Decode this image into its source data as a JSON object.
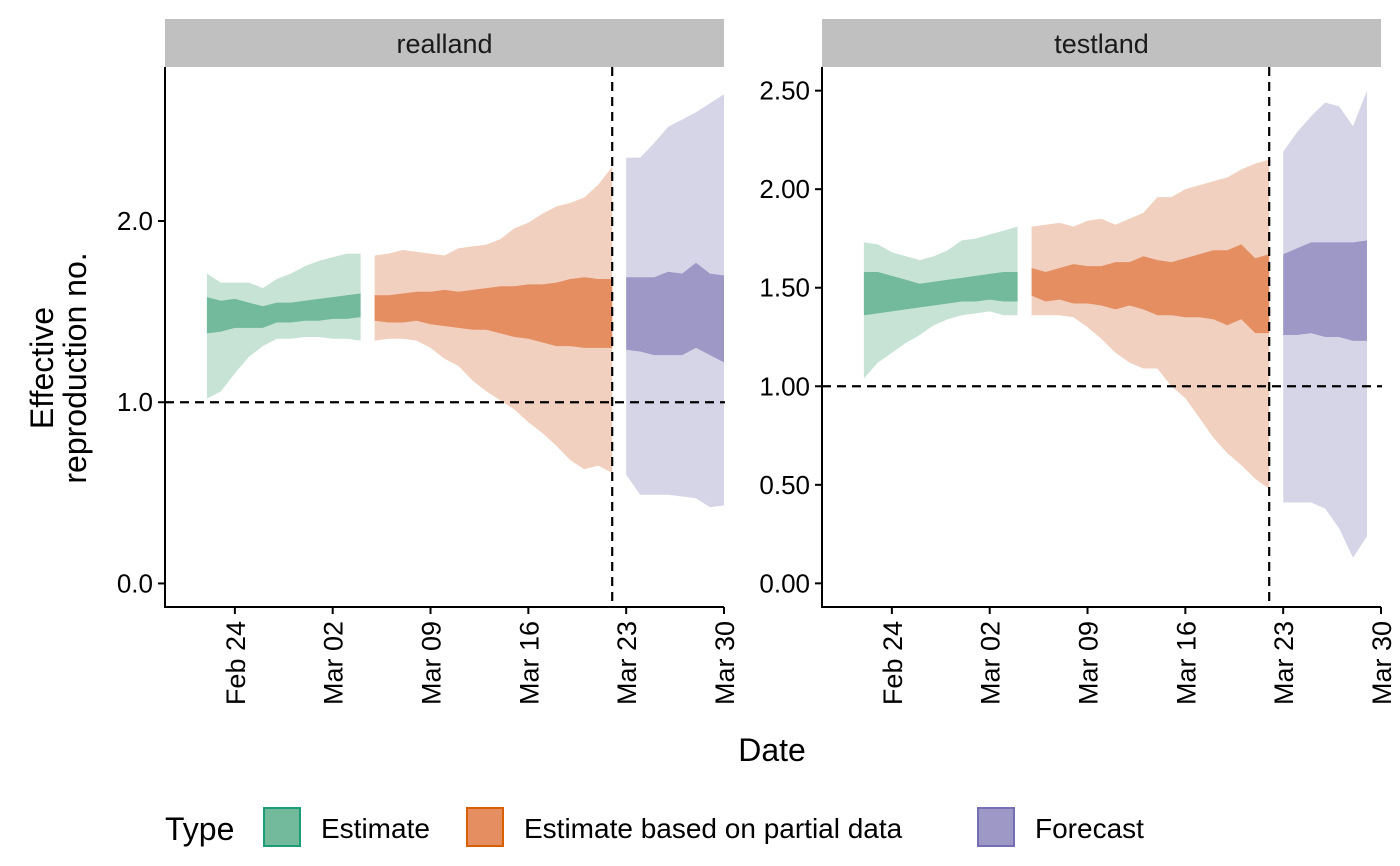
{
  "chart_data": {
    "type": "area",
    "ylabel_lines": [
      "Effective",
      "reproduction no."
    ],
    "xlabel": "Date",
    "legend": {
      "title": "Type",
      "position": "bottom",
      "entries": [
        {
          "label": "Estimate",
          "fill": "#73B99C",
          "stroke": "#1B9E77"
        },
        {
          "label": "Estimate based on partial data",
          "fill": "#E48E62",
          "stroke": "#D95F02"
        },
        {
          "label": "Forecast",
          "fill": "#9D98C6",
          "stroke": "#7570B3"
        }
      ]
    },
    "colors": {
      "Estimate": {
        "inner": "#73B99C",
        "outer": "#C7E3D6"
      },
      "Estimate based on partial data": {
        "inner": "#E48E62",
        "outer": "#F2D0BF"
      },
      "Forecast": {
        "inner": "#9D98C6",
        "outer": "#D6D5E8"
      }
    },
    "reference_line_y": 1.0,
    "reference_line_x": "2020-03-22",
    "x_ticks": [
      "Feb 24",
      "Mar 02",
      "Mar 09",
      "Mar 16",
      "Mar 23",
      "Mar 30"
    ],
    "x_tick_dates": [
      "2020-02-24",
      "2020-03-02",
      "2020-03-09",
      "2020-03-16",
      "2020-03-23",
      "2020-03-30"
    ],
    "xlim": [
      "2020-02-19",
      "2020-03-30"
    ],
    "facets": [
      {
        "name": "realland",
        "ylim": [
          -0.13,
          2.85
        ],
        "y_ticks": [
          0.0,
          1.0,
          2.0
        ],
        "y_tick_labels": [
          "0.0",
          "1.0",
          "2.0"
        ],
        "bands": [
          {
            "type": "Estimate",
            "x": [
              "2020-02-22",
              "2020-02-23",
              "2020-02-24",
              "2020-02-25",
              "2020-02-26",
              "2020-02-27",
              "2020-02-28",
              "2020-02-29",
              "2020-03-01",
              "2020-03-02",
              "2020-03-03",
              "2020-03-04"
            ],
            "lower90": [
              1.02,
              1.06,
              1.16,
              1.25,
              1.31,
              1.35,
              1.35,
              1.36,
              1.36,
              1.35,
              1.35,
              1.34
            ],
            "upper90": [
              1.71,
              1.66,
              1.66,
              1.66,
              1.63,
              1.68,
              1.71,
              1.75,
              1.78,
              1.8,
              1.82,
              1.82
            ],
            "lower50": [
              1.38,
              1.39,
              1.41,
              1.41,
              1.41,
              1.44,
              1.44,
              1.45,
              1.45,
              1.46,
              1.46,
              1.47
            ],
            "upper50": [
              1.58,
              1.56,
              1.57,
              1.55,
              1.53,
              1.55,
              1.55,
              1.56,
              1.57,
              1.58,
              1.59,
              1.6
            ]
          },
          {
            "type": "Estimate based on partial data",
            "x": [
              "2020-03-05",
              "2020-03-06",
              "2020-03-07",
              "2020-03-08",
              "2020-03-09",
              "2020-03-10",
              "2020-03-11",
              "2020-03-12",
              "2020-03-13",
              "2020-03-14",
              "2020-03-15",
              "2020-03-16",
              "2020-03-17",
              "2020-03-18",
              "2020-03-19",
              "2020-03-20",
              "2020-03-21",
              "2020-03-22"
            ],
            "lower90": [
              1.34,
              1.35,
              1.35,
              1.34,
              1.3,
              1.24,
              1.2,
              1.12,
              1.06,
              1.01,
              0.96,
              0.89,
              0.83,
              0.76,
              0.68,
              0.63,
              0.65,
              0.61
            ],
            "upper90": [
              1.81,
              1.82,
              1.84,
              1.83,
              1.82,
              1.81,
              1.85,
              1.86,
              1.87,
              1.9,
              1.96,
              1.99,
              2.04,
              2.08,
              2.1,
              2.13,
              2.2,
              2.3
            ],
            "lower50": [
              1.45,
              1.44,
              1.44,
              1.45,
              1.43,
              1.42,
              1.41,
              1.4,
              1.4,
              1.38,
              1.36,
              1.35,
              1.33,
              1.31,
              1.31,
              1.3,
              1.3,
              1.3
            ],
            "upper50": [
              1.59,
              1.59,
              1.6,
              1.61,
              1.61,
              1.62,
              1.61,
              1.62,
              1.63,
              1.64,
              1.64,
              1.65,
              1.65,
              1.66,
              1.68,
              1.69,
              1.68,
              1.68
            ]
          },
          {
            "type": "Forecast",
            "x": [
              "2020-03-23",
              "2020-03-24",
              "2020-03-25",
              "2020-03-26",
              "2020-03-27",
              "2020-03-28",
              "2020-03-29",
              "2020-03-30"
            ],
            "lower90": [
              0.6,
              0.49,
              0.49,
              0.49,
              0.48,
              0.47,
              0.42,
              0.43
            ],
            "upper90": [
              2.35,
              2.35,
              2.43,
              2.52,
              2.56,
              2.6,
              2.65,
              2.7
            ],
            "lower50": [
              1.29,
              1.28,
              1.26,
              1.26,
              1.26,
              1.3,
              1.26,
              1.22
            ],
            "upper50": [
              1.69,
              1.69,
              1.69,
              1.72,
              1.71,
              1.77,
              1.71,
              1.7
            ]
          }
        ]
      },
      {
        "name": "testland",
        "ylim": [
          -0.12,
          2.62
        ],
        "y_ticks": [
          0.0,
          0.5,
          1.0,
          1.5,
          2.0,
          2.5
        ],
        "y_tick_labels": [
          "0.00",
          "0.50",
          "1.00",
          "1.50",
          "2.00",
          "2.50"
        ],
        "bands": [
          {
            "type": "Estimate",
            "x": [
              "2020-02-22",
              "2020-02-23",
              "2020-02-24",
              "2020-02-25",
              "2020-02-26",
              "2020-02-27",
              "2020-02-28",
              "2020-02-29",
              "2020-03-01",
              "2020-03-02",
              "2020-03-03",
              "2020-03-04"
            ],
            "lower90": [
              1.04,
              1.12,
              1.17,
              1.22,
              1.26,
              1.31,
              1.34,
              1.36,
              1.37,
              1.38,
              1.36,
              1.36
            ],
            "upper90": [
              1.73,
              1.72,
              1.68,
              1.66,
              1.64,
              1.66,
              1.69,
              1.74,
              1.75,
              1.77,
              1.79,
              1.81
            ],
            "lower50": [
              1.36,
              1.37,
              1.38,
              1.39,
              1.4,
              1.41,
              1.42,
              1.43,
              1.43,
              1.44,
              1.43,
              1.43
            ],
            "upper50": [
              1.58,
              1.58,
              1.56,
              1.54,
              1.52,
              1.53,
              1.54,
              1.55,
              1.56,
              1.57,
              1.58,
              1.58
            ]
          },
          {
            "type": "Estimate based on partial data",
            "x": [
              "2020-03-05",
              "2020-03-06",
              "2020-03-07",
              "2020-03-08",
              "2020-03-09",
              "2020-03-10",
              "2020-03-11",
              "2020-03-12",
              "2020-03-13",
              "2020-03-14",
              "2020-03-15",
              "2020-03-16",
              "2020-03-17",
              "2020-03-18",
              "2020-03-19",
              "2020-03-20",
              "2020-03-21",
              "2020-03-22"
            ],
            "lower90": [
              1.36,
              1.36,
              1.36,
              1.35,
              1.3,
              1.24,
              1.17,
              1.12,
              1.09,
              1.09,
              1.0,
              0.94,
              0.84,
              0.74,
              0.66,
              0.6,
              0.53,
              0.48
            ],
            "upper90": [
              1.81,
              1.82,
              1.83,
              1.81,
              1.84,
              1.85,
              1.82,
              1.85,
              1.88,
              1.96,
              1.96,
              2.0,
              2.02,
              2.04,
              2.06,
              2.1,
              2.13,
              2.15
            ],
            "lower50": [
              1.46,
              1.43,
              1.44,
              1.42,
              1.42,
              1.41,
              1.39,
              1.41,
              1.39,
              1.36,
              1.36,
              1.35,
              1.35,
              1.34,
              1.31,
              1.34,
              1.27,
              1.27
            ],
            "upper50": [
              1.6,
              1.58,
              1.6,
              1.62,
              1.61,
              1.61,
              1.63,
              1.63,
              1.66,
              1.64,
              1.63,
              1.65,
              1.67,
              1.69,
              1.69,
              1.72,
              1.65,
              1.67
            ]
          },
          {
            "type": "Forecast",
            "x": [
              "2020-03-23",
              "2020-03-24",
              "2020-03-25",
              "2020-03-26",
              "2020-03-27",
              "2020-03-28",
              "2020-03-29"
            ],
            "lower90": [
              0.41,
              0.41,
              0.41,
              0.38,
              0.28,
              0.13,
              0.24
            ],
            "upper90": [
              2.19,
              2.29,
              2.37,
              2.44,
              2.42,
              2.32,
              2.5
            ],
            "lower50": [
              1.26,
              1.26,
              1.27,
              1.25,
              1.25,
              1.23,
              1.23
            ],
            "upper50": [
              1.67,
              1.7,
              1.73,
              1.73,
              1.73,
              1.73,
              1.74
            ]
          }
        ]
      }
    ]
  }
}
